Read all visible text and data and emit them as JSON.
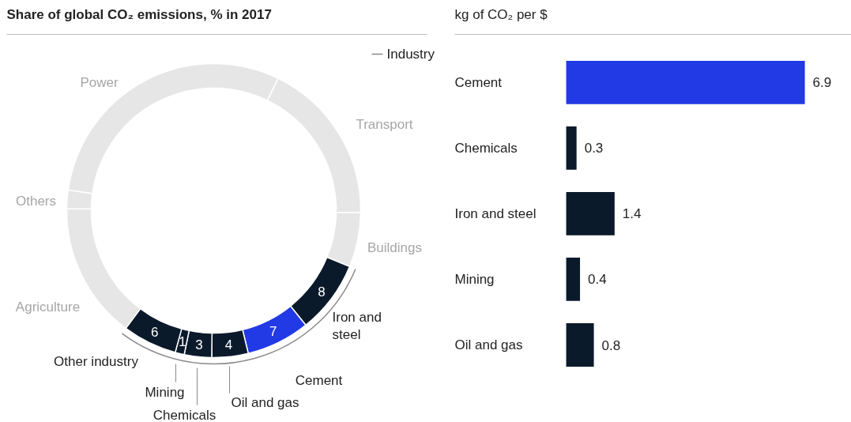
{
  "chart_data": [
    {
      "type": "donut",
      "title": "Share of global CO₂ emissions, % in 2017",
      "categories": [
        "Power",
        "Transport",
        "Buildings",
        "Iron and steel",
        "Cement",
        "Oil and gas",
        "Chemicals",
        "Mining",
        "Other industry",
        "Agriculture",
        "Others"
      ],
      "values": [
        30,
        18,
        6,
        8,
        7,
        4,
        3,
        1,
        6,
        15,
        2
      ],
      "colors": [
        "#e6e6e6",
        "#e6e6e6",
        "#e6e6e6",
        "#0b1a2b",
        "#2239e6",
        "#0b1a2b",
        "#0b1a2b",
        "#0b1a2b",
        "#0b1a2b",
        "#e6e6e6",
        "#e6e6e6"
      ],
      "value_labels": [
        null,
        null,
        null,
        "8",
        "7",
        "4",
        "3",
        "1",
        "6",
        null,
        null
      ],
      "annotations": [
        "Industry"
      ]
    },
    {
      "type": "bar",
      "orientation": "horizontal",
      "title": "kg of CO₂ per $",
      "categories": [
        "Cement",
        "Chemicals",
        "Iron and steel",
        "Mining",
        "Oil and gas"
      ],
      "values": [
        6.9,
        0.3,
        1.4,
        0.4,
        0.8
      ],
      "colors": [
        "#2239e6",
        "#0b1a2b",
        "#0b1a2b",
        "#0b1a2b",
        "#0b1a2b"
      ],
      "data_labels": true
    }
  ]
}
